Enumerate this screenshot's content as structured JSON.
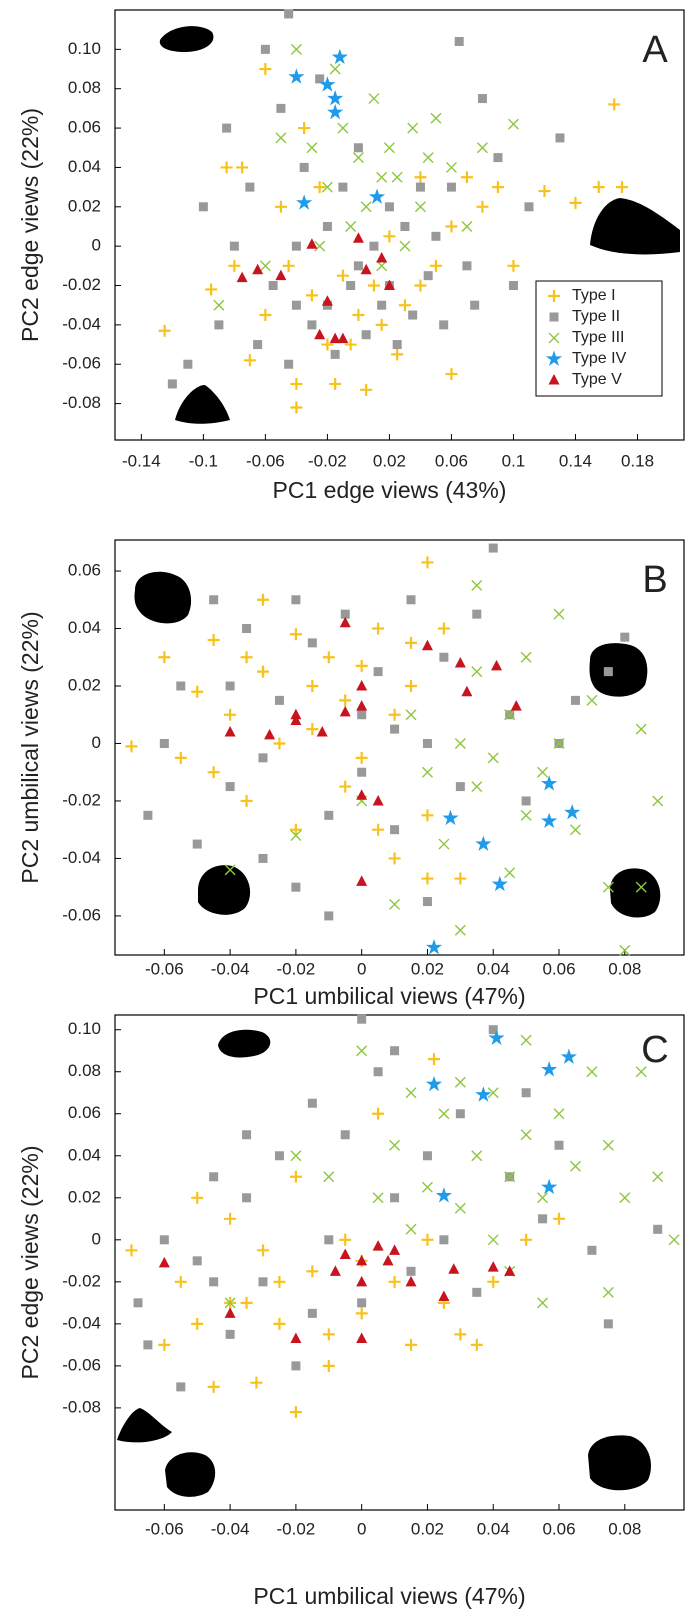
{
  "chart_data": [
    {
      "type": "scatter",
      "panel_label": "A",
      "x_label": "PC1 edge views (43%)",
      "y_label": "PC2 edge views (22%)",
      "xlim": [
        -0.157,
        0.21
      ],
      "ylim": [
        -0.0985,
        0.12
      ],
      "xticks": [
        -0.14,
        -0.1,
        -0.06,
        -0.02,
        0.02,
        0.06,
        0.1,
        0.14,
        0.18
      ],
      "yticks": [
        {
          "value": 0.1,
          "label": "0.10"
        },
        0.08,
        0.06,
        0.04,
        0.02,
        0,
        -0.02,
        -0.04,
        -0.06,
        -0.08
      ],
      "legend": "right",
      "series": [
        {
          "name": "Type I",
          "color": "#f7c21b",
          "marker": "plus",
          "x": [
            -0.125,
            -0.095,
            -0.085,
            -0.075,
            -0.07,
            -0.06,
            -0.05,
            -0.045,
            -0.04,
            -0.04,
            -0.03,
            -0.025,
            -0.02,
            -0.015,
            -0.01,
            0,
            0.005,
            0.01,
            0.015,
            0.02,
            0.03,
            0.04,
            0.05,
            0.06,
            0.07,
            0.08,
            0.1,
            0.12,
            0.14,
            0.155,
            0.17,
            0.165,
            -0.06,
            -0.035,
            -0.005,
            0.025,
            0.04,
            0.06,
            -0.08,
            0.09
          ],
          "y": [
            -0.043,
            -0.022,
            0.04,
            0.04,
            -0.058,
            -0.035,
            0.02,
            -0.01,
            -0.082,
            -0.07,
            -0.025,
            0.03,
            -0.05,
            -0.07,
            -0.015,
            -0.035,
            -0.073,
            -0.02,
            -0.04,
            0.005,
            -0.03,
            0.035,
            -0.01,
            -0.065,
            0.035,
            0.02,
            -0.01,
            0.028,
            0.022,
            0.03,
            0.03,
            0.072,
            0.09,
            0.06,
            -0.05,
            -0.055,
            -0.02,
            0.01,
            -0.01,
            0.03
          ]
        },
        {
          "name": "Type II",
          "color": "#999999",
          "marker": "square",
          "x": [
            -0.11,
            -0.1,
            -0.09,
            -0.085,
            -0.08,
            -0.07,
            -0.065,
            -0.06,
            -0.055,
            -0.05,
            -0.045,
            -0.04,
            -0.035,
            -0.03,
            -0.025,
            -0.02,
            -0.015,
            -0.01,
            -0.005,
            0,
            0.005,
            0.01,
            0.015,
            0.02,
            0.025,
            0.03,
            0.035,
            0.04,
            0.045,
            0.05,
            0.055,
            0.06,
            0.065,
            0.07,
            0.08,
            0.09,
            0.1,
            0.11,
            -0.045,
            -0.12,
            0.13,
            0.075,
            -0.02,
            0,
            0.02,
            -0.04
          ],
          "y": [
            -0.06,
            0.02,
            -0.04,
            0.06,
            0,
            0.03,
            -0.05,
            0.1,
            -0.02,
            0.07,
            -0.06,
            0,
            0.04,
            -0.04,
            0.085,
            0.01,
            -0.055,
            0.03,
            -0.02,
            0.05,
            -0.045,
            0,
            -0.03,
            0.02,
            -0.05,
            0.01,
            -0.035,
            0.03,
            -0.015,
            0.005,
            -0.04,
            0.03,
            0.104,
            -0.01,
            0.075,
            0.045,
            -0.02,
            0.02,
            0.118,
            -0.07,
            0.055,
            -0.03,
            -0.03,
            -0.01,
            -0.02,
            -0.03
          ]
        },
        {
          "name": "Type III",
          "color": "#8dc63f",
          "marker": "x",
          "x": [
            -0.09,
            -0.06,
            -0.05,
            -0.04,
            -0.03,
            -0.02,
            -0.015,
            -0.01,
            -0.005,
            0,
            0.005,
            0.01,
            0.02,
            0.025,
            0.03,
            0.035,
            0.04,
            0.05,
            0.06,
            0.07,
            0.08,
            0.1,
            0.015,
            -0.025,
            0.045,
            0.015
          ],
          "y": [
            -0.03,
            -0.01,
            0.055,
            0.1,
            0.05,
            0.03,
            0.09,
            0.06,
            0.01,
            0.045,
            0.02,
            0.075,
            0.05,
            0.035,
            0,
            0.06,
            0.02,
            0.065,
            0.04,
            0.01,
            0.05,
            0.062,
            -0.01,
            0,
            0.045,
            0.035
          ]
        },
        {
          "name": "Type IV",
          "color": "#1f9bea",
          "marker": "star",
          "x": [
            -0.04,
            -0.02,
            -0.015,
            -0.015,
            -0.012,
            0.012,
            -0.035
          ],
          "y": [
            0.086,
            0.082,
            0.075,
            0.068,
            0.096,
            0.025,
            0.022
          ]
        },
        {
          "name": "Type V",
          "color": "#c8141e",
          "marker": "triangle",
          "x": [
            -0.075,
            -0.065,
            -0.05,
            -0.03,
            -0.02,
            -0.015,
            -0.01,
            0,
            0.005,
            0.015,
            -0.025,
            0.02
          ],
          "y": [
            -0.016,
            -0.012,
            -0.015,
            0.001,
            -0.028,
            -0.047,
            -0.047,
            0.004,
            -0.012,
            -0.006,
            -0.045,
            -0.02
          ]
        }
      ]
    },
    {
      "type": "scatter",
      "panel_label": "B",
      "x_label": "PC1 umbilical views (47%)",
      "y_label": "PC2 umbilical views (22%)",
      "xlim": [
        -0.075,
        0.098
      ],
      "ylim": [
        -0.0736,
        0.0708
      ],
      "xticks": [
        -0.06,
        -0.04,
        -0.02,
        0,
        0.02,
        0.04,
        0.06,
        0.08
      ],
      "yticks": [
        0.06,
        0.04,
        0.02,
        0,
        -0.02,
        -0.04,
        -0.06
      ],
      "series": [
        {
          "color": "#f7c21b",
          "marker": "plus",
          "x": [
            -0.07,
            -0.06,
            -0.055,
            -0.05,
            -0.045,
            -0.04,
            -0.035,
            -0.03,
            -0.03,
            -0.025,
            -0.02,
            -0.02,
            -0.015,
            -0.01,
            -0.005,
            0,
            0,
            0.005,
            0.01,
            0.01,
            0.015,
            0.02,
            0.025,
            0.02,
            0.03,
            0.02,
            -0.015,
            -0.045,
            0.005,
            -0.035,
            0.015,
            -0.005
          ],
          "y": [
            -0.001,
            0.03,
            -0.005,
            0.018,
            0.036,
            0.01,
            -0.02,
            0.05,
            0.025,
            0,
            0.038,
            -0.03,
            0.02,
            0.03,
            -0.015,
            0.027,
            -0.005,
            0.04,
            0.01,
            -0.04,
            0.02,
            0.063,
            0.04,
            -0.047,
            -0.047,
            -0.025,
            0.005,
            -0.01,
            -0.03,
            0.03,
            0.035,
            0.015
          ]
        },
        {
          "color": "#999999",
          "marker": "square",
          "x": [
            -0.065,
            -0.06,
            -0.055,
            -0.05,
            -0.045,
            -0.04,
            -0.035,
            -0.03,
            -0.025,
            -0.02,
            -0.015,
            -0.01,
            -0.005,
            0,
            0.005,
            0.01,
            0.015,
            0.02,
            0.025,
            0.03,
            0.035,
            0.04,
            0.045,
            0.05,
            0.06,
            0.065,
            0.075,
            0.08,
            -0.01,
            -0.02,
            0.02,
            -0.04,
            0,
            -0.03,
            0.01
          ],
          "y": [
            -0.025,
            0,
            0.02,
            -0.035,
            0.05,
            -0.015,
            0.04,
            -0.04,
            0.015,
            -0.05,
            0.035,
            -0.025,
            0.045,
            -0.01,
            0.025,
            -0.03,
            0.05,
            0,
            0.03,
            -0.015,
            0.045,
            0.068,
            0.01,
            -0.02,
            0,
            0.015,
            0.025,
            0.037,
            -0.06,
            0.05,
            -0.055,
            0.02,
            0.01,
            -0.005,
            0.005
          ]
        },
        {
          "color": "#8dc63f",
          "marker": "x",
          "x": [
            -0.04,
            -0.02,
            0,
            0.01,
            0.015,
            0.02,
            0.025,
            0.03,
            0.035,
            0.035,
            0.04,
            0.045,
            0.045,
            0.05,
            0.05,
            0.055,
            0.06,
            0.065,
            0.07,
            0.075,
            0.08,
            0.085,
            0.09,
            0.085,
            0.03,
            0.06,
            0.035
          ],
          "y": [
            -0.044,
            -0.032,
            -0.02,
            -0.056,
            0.01,
            -0.01,
            -0.035,
            0,
            -0.015,
            0.025,
            -0.005,
            0.01,
            -0.045,
            -0.025,
            0.03,
            -0.01,
            0,
            -0.03,
            0.015,
            -0.05,
            -0.072,
            0.005,
            -0.02,
            -0.05,
            -0.065,
            0.045,
            0.055
          ]
        },
        {
          "color": "#1f9bea",
          "marker": "star",
          "x": [
            0.022,
            0.027,
            0.037,
            0.042,
            0.057,
            0.057,
            0.064
          ],
          "y": [
            -0.071,
            -0.026,
            -0.035,
            -0.049,
            -0.014,
            -0.027,
            -0.024
          ]
        },
        {
          "color": "#c8141e",
          "marker": "triangle",
          "x": [
            -0.04,
            -0.028,
            -0.02,
            -0.02,
            -0.012,
            -0.005,
            -0.005,
            0,
            0,
            0.005,
            0,
            0.02,
            0.03,
            0.032,
            0.041,
            0.047,
            0
          ],
          "y": [
            0.004,
            0.003,
            0.008,
            0.01,
            0.004,
            0.011,
            0.042,
            0.02,
            0.013,
            -0.02,
            -0.018,
            0.034,
            0.028,
            0.018,
            0.027,
            0.013,
            -0.048
          ]
        }
      ]
    },
    {
      "type": "scatter",
      "panel_label": "C",
      "x_label": "PC1 umbilical views (47%)",
      "y_label": "PC2 edge views (22%)",
      "xlim": [
        -0.075,
        0.098
      ],
      "ylim": [
        -0.1286,
        0.107
      ],
      "xticks": [
        -0.06,
        -0.04,
        -0.02,
        0,
        0.02,
        0.04,
        0.06,
        0.08
      ],
      "yticks": [
        {
          "value": 0.1,
          "label": "0.10"
        },
        0.08,
        0.06,
        0.04,
        0.02,
        0,
        -0.02,
        -0.04,
        -0.06,
        -0.08
      ],
      "series": [
        {
          "color": "#f7c21b",
          "marker": "plus",
          "x": [
            -0.07,
            -0.06,
            -0.055,
            -0.05,
            -0.045,
            -0.04,
            -0.035,
            -0.032,
            -0.03,
            -0.025,
            -0.02,
            -0.02,
            -0.015,
            -0.01,
            -0.005,
            0,
            0.005,
            0.01,
            0.015,
            0.02,
            0.022,
            0.025,
            0.03,
            0.035,
            0.04,
            0.05,
            0.06,
            -0.04,
            -0.05,
            -0.01,
            0,
            -0.025
          ],
          "y": [
            -0.005,
            -0.05,
            -0.02,
            0.02,
            -0.07,
            0.01,
            -0.03,
            -0.068,
            -0.005,
            -0.04,
            0.03,
            -0.082,
            -0.015,
            -0.045,
            0,
            -0.035,
            0.06,
            -0.02,
            -0.05,
            0,
            0.086,
            -0.03,
            -0.045,
            -0.05,
            -0.02,
            0,
            0.01,
            -0.03,
            -0.04,
            -0.06,
            -0.01,
            -0.02
          ]
        },
        {
          "color": "#999999",
          "marker": "square",
          "x": [
            -0.068,
            -0.065,
            -0.06,
            -0.055,
            -0.05,
            -0.045,
            -0.04,
            -0.035,
            -0.03,
            -0.025,
            -0.02,
            -0.015,
            -0.01,
            -0.005,
            0,
            0,
            0.005,
            0.01,
            0.015,
            0.02,
            0.025,
            0.03,
            0.035,
            0.04,
            0.045,
            0.05,
            0.055,
            0.06,
            0.07,
            0.075,
            0.09,
            -0.035,
            0.01,
            -0.045,
            -0.015
          ],
          "y": [
            -0.03,
            -0.05,
            0,
            -0.07,
            -0.01,
            0.03,
            -0.045,
            0.02,
            -0.02,
            0.04,
            -0.06,
            0.065,
            0,
            0.05,
            -0.03,
            0.105,
            0.08,
            0.02,
            -0.015,
            0.04,
            0,
            0.06,
            -0.025,
            0.1,
            0.03,
            0.07,
            0.01,
            0.045,
            -0.005,
            -0.04,
            0.005,
            0.05,
            0.09,
            -0.02,
            -0.035
          ]
        },
        {
          "color": "#8dc63f",
          "marker": "x",
          "x": [
            -0.02,
            -0.01,
            0,
            0.005,
            0.01,
            0.015,
            0.02,
            0.025,
            0.03,
            0.035,
            0.04,
            0.04,
            0.045,
            0.05,
            0.05,
            0.055,
            0.055,
            0.06,
            0.065,
            0.07,
            0.075,
            0.08,
            0.085,
            0.09,
            0.075,
            0.095,
            0.03,
            0.045,
            -0.04,
            0.015
          ],
          "y": [
            0.04,
            0.03,
            0.09,
            0.02,
            0.045,
            0.005,
            0.025,
            0.06,
            0.015,
            0.04,
            0.07,
            0,
            0.03,
            0.095,
            0.05,
            -0.03,
            0.02,
            0.06,
            0.035,
            0.08,
            0.045,
            0.02,
            0.08,
            0.03,
            -0.025,
            0,
            0.075,
            -0.015,
            -0.03,
            0.07
          ]
        },
        {
          "color": "#1f9bea",
          "marker": "star",
          "x": [
            0.022,
            0.025,
            0.037,
            0.041,
            0.057,
            0.057,
            0.063
          ],
          "y": [
            0.074,
            0.021,
            0.069,
            0.096,
            0.081,
            0.025,
            0.087
          ]
        },
        {
          "color": "#c8141e",
          "marker": "triangle",
          "x": [
            -0.06,
            -0.04,
            -0.02,
            -0.008,
            -0.005,
            0,
            0,
            0.005,
            0.008,
            0.01,
            0.015,
            0.025,
            0.028,
            0.04,
            0.045,
            0
          ],
          "y": [
            -0.011,
            -0.035,
            -0.047,
            -0.015,
            -0.007,
            -0.047,
            -0.02,
            -0.003,
            -0.01,
            -0.005,
            -0.02,
            -0.027,
            -0.014,
            -0.013,
            -0.015,
            -0.01
          ]
        }
      ]
    }
  ]
}
